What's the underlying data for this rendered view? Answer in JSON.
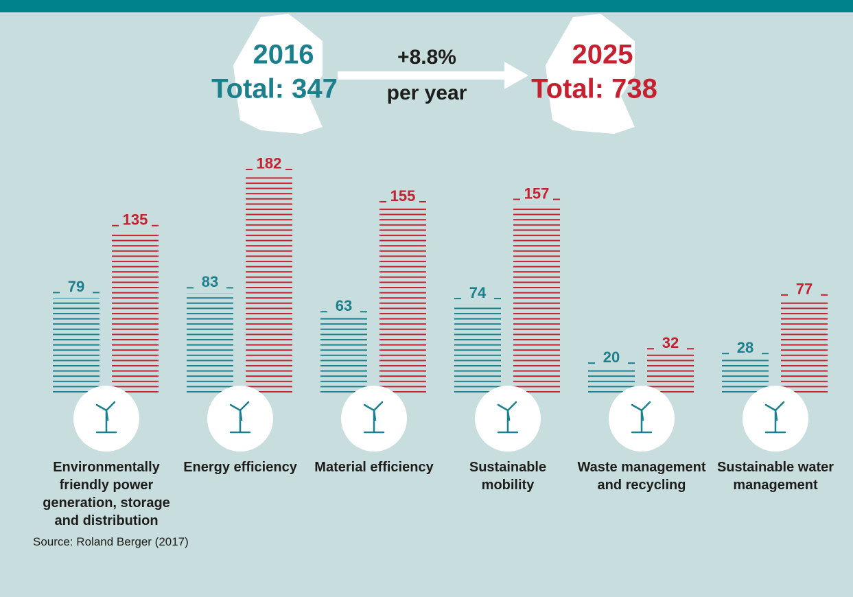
{
  "chart_data": {
    "type": "bar",
    "growth_label": "+8.8%",
    "growth_unit": "per year",
    "categories": [
      "Environmentally friendly power generation, storage and distribution",
      "Energy efficiency",
      "Material efficiency",
      "Sustainable mobility",
      "Waste management and recycling",
      "Sustainable water management"
    ],
    "series": [
      {
        "name": "2016",
        "total_label": "Total: 347",
        "color": "#1b7f8c",
        "values": [
          79,
          83,
          63,
          74,
          20,
          28
        ]
      },
      {
        "name": "2025",
        "total_label": "Total: 738",
        "color": "#c4202f",
        "values": [
          135,
          182,
          155,
          157,
          32,
          77
        ]
      }
    ],
    "ylim": [
      0,
      190
    ],
    "source": "Source: Roland Berger (2017)"
  }
}
